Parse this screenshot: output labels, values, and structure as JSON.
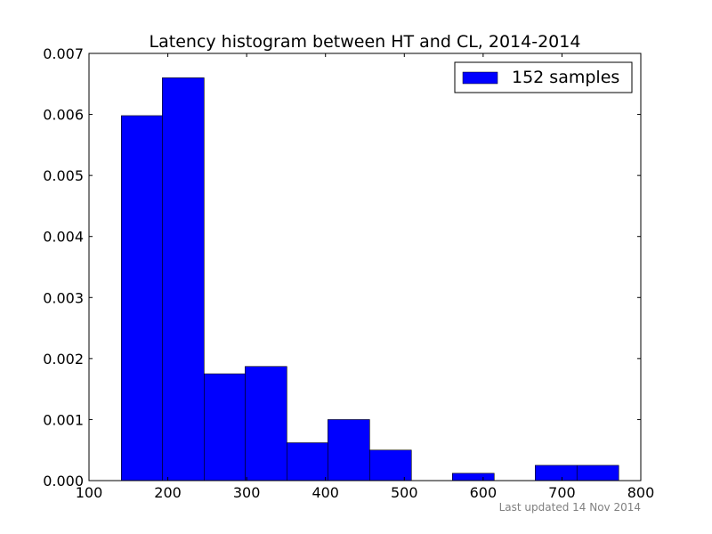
{
  "chart_data": {
    "type": "bar",
    "title": "Latency histogram between HT and CL, 2014-2014",
    "xlabel": "",
    "ylabel": "",
    "xlim": [
      100,
      800
    ],
    "ylim": [
      0,
      0.007
    ],
    "xticks": [
      100,
      200,
      300,
      400,
      500,
      600,
      700,
      800
    ],
    "yticks": [
      0.0,
      0.001,
      0.002,
      0.003,
      0.004,
      0.005,
      0.006,
      0.007
    ],
    "grid": false,
    "legend": {
      "placement": "top-right",
      "entries": [
        "152 samples"
      ]
    },
    "bar_color": "#0000ff",
    "bins": [
      {
        "start": 141,
        "end": 193,
        "value": 0.00598
      },
      {
        "start": 193,
        "end": 246,
        "value": 0.0066
      },
      {
        "start": 246,
        "end": 298,
        "value": 0.00175
      },
      {
        "start": 298,
        "end": 351,
        "value": 0.00187
      },
      {
        "start": 351,
        "end": 403,
        "value": 0.00062
      },
      {
        "start": 403,
        "end": 456,
        "value": 0.001
      },
      {
        "start": 456,
        "end": 509,
        "value": 0.0005
      },
      {
        "start": 509,
        "end": 561,
        "value": 0.0
      },
      {
        "start": 561,
        "end": 614,
        "value": 0.00012
      },
      {
        "start": 614,
        "end": 666,
        "value": 0.0
      },
      {
        "start": 666,
        "end": 719,
        "value": 0.00025
      },
      {
        "start": 719,
        "end": 772,
        "value": 0.00025
      }
    ]
  },
  "footer": {
    "updated_text": "Last updated 14 Nov 2014"
  }
}
